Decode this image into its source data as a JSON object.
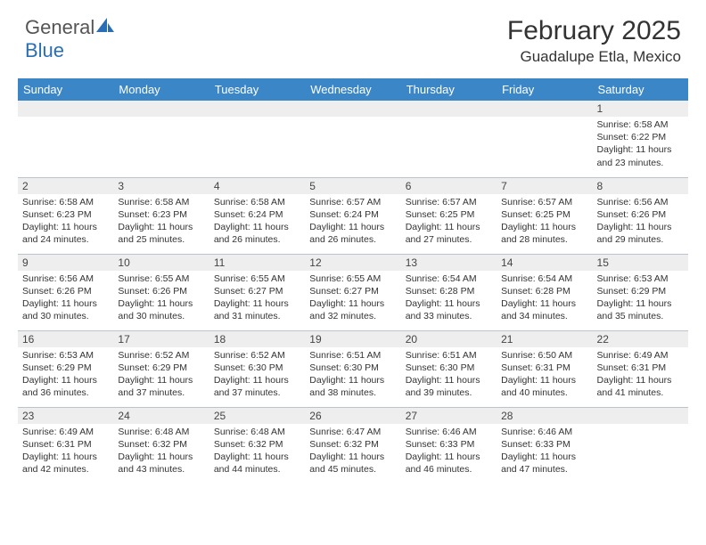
{
  "logo": {
    "text1": "General",
    "text2": "Blue"
  },
  "title": "February 2025",
  "location": "Guadalupe Etla, Mexico",
  "colors": {
    "header_bg": "#3b86c6",
    "header_text": "#ffffff",
    "daynum_bg": "#eeeeee",
    "border": "#b8c5d0",
    "logo_blue": "#2a6fb5"
  },
  "day_headers": [
    "Sunday",
    "Monday",
    "Tuesday",
    "Wednesday",
    "Thursday",
    "Friday",
    "Saturday"
  ],
  "weeks": [
    [
      {
        "n": "",
        "sunrise": "",
        "sunset": "",
        "daylight": ""
      },
      {
        "n": "",
        "sunrise": "",
        "sunset": "",
        "daylight": ""
      },
      {
        "n": "",
        "sunrise": "",
        "sunset": "",
        "daylight": ""
      },
      {
        "n": "",
        "sunrise": "",
        "sunset": "",
        "daylight": ""
      },
      {
        "n": "",
        "sunrise": "",
        "sunset": "",
        "daylight": ""
      },
      {
        "n": "",
        "sunrise": "",
        "sunset": "",
        "daylight": ""
      },
      {
        "n": "1",
        "sunrise": "Sunrise: 6:58 AM",
        "sunset": "Sunset: 6:22 PM",
        "daylight": "Daylight: 11 hours and 23 minutes."
      }
    ],
    [
      {
        "n": "2",
        "sunrise": "Sunrise: 6:58 AM",
        "sunset": "Sunset: 6:23 PM",
        "daylight": "Daylight: 11 hours and 24 minutes."
      },
      {
        "n": "3",
        "sunrise": "Sunrise: 6:58 AM",
        "sunset": "Sunset: 6:23 PM",
        "daylight": "Daylight: 11 hours and 25 minutes."
      },
      {
        "n": "4",
        "sunrise": "Sunrise: 6:58 AM",
        "sunset": "Sunset: 6:24 PM",
        "daylight": "Daylight: 11 hours and 26 minutes."
      },
      {
        "n": "5",
        "sunrise": "Sunrise: 6:57 AM",
        "sunset": "Sunset: 6:24 PM",
        "daylight": "Daylight: 11 hours and 26 minutes."
      },
      {
        "n": "6",
        "sunrise": "Sunrise: 6:57 AM",
        "sunset": "Sunset: 6:25 PM",
        "daylight": "Daylight: 11 hours and 27 minutes."
      },
      {
        "n": "7",
        "sunrise": "Sunrise: 6:57 AM",
        "sunset": "Sunset: 6:25 PM",
        "daylight": "Daylight: 11 hours and 28 minutes."
      },
      {
        "n": "8",
        "sunrise": "Sunrise: 6:56 AM",
        "sunset": "Sunset: 6:26 PM",
        "daylight": "Daylight: 11 hours and 29 minutes."
      }
    ],
    [
      {
        "n": "9",
        "sunrise": "Sunrise: 6:56 AM",
        "sunset": "Sunset: 6:26 PM",
        "daylight": "Daylight: 11 hours and 30 minutes."
      },
      {
        "n": "10",
        "sunrise": "Sunrise: 6:55 AM",
        "sunset": "Sunset: 6:26 PM",
        "daylight": "Daylight: 11 hours and 30 minutes."
      },
      {
        "n": "11",
        "sunrise": "Sunrise: 6:55 AM",
        "sunset": "Sunset: 6:27 PM",
        "daylight": "Daylight: 11 hours and 31 minutes."
      },
      {
        "n": "12",
        "sunrise": "Sunrise: 6:55 AM",
        "sunset": "Sunset: 6:27 PM",
        "daylight": "Daylight: 11 hours and 32 minutes."
      },
      {
        "n": "13",
        "sunrise": "Sunrise: 6:54 AM",
        "sunset": "Sunset: 6:28 PM",
        "daylight": "Daylight: 11 hours and 33 minutes."
      },
      {
        "n": "14",
        "sunrise": "Sunrise: 6:54 AM",
        "sunset": "Sunset: 6:28 PM",
        "daylight": "Daylight: 11 hours and 34 minutes."
      },
      {
        "n": "15",
        "sunrise": "Sunrise: 6:53 AM",
        "sunset": "Sunset: 6:29 PM",
        "daylight": "Daylight: 11 hours and 35 minutes."
      }
    ],
    [
      {
        "n": "16",
        "sunrise": "Sunrise: 6:53 AM",
        "sunset": "Sunset: 6:29 PM",
        "daylight": "Daylight: 11 hours and 36 minutes."
      },
      {
        "n": "17",
        "sunrise": "Sunrise: 6:52 AM",
        "sunset": "Sunset: 6:29 PM",
        "daylight": "Daylight: 11 hours and 37 minutes."
      },
      {
        "n": "18",
        "sunrise": "Sunrise: 6:52 AM",
        "sunset": "Sunset: 6:30 PM",
        "daylight": "Daylight: 11 hours and 37 minutes."
      },
      {
        "n": "19",
        "sunrise": "Sunrise: 6:51 AM",
        "sunset": "Sunset: 6:30 PM",
        "daylight": "Daylight: 11 hours and 38 minutes."
      },
      {
        "n": "20",
        "sunrise": "Sunrise: 6:51 AM",
        "sunset": "Sunset: 6:30 PM",
        "daylight": "Daylight: 11 hours and 39 minutes."
      },
      {
        "n": "21",
        "sunrise": "Sunrise: 6:50 AM",
        "sunset": "Sunset: 6:31 PM",
        "daylight": "Daylight: 11 hours and 40 minutes."
      },
      {
        "n": "22",
        "sunrise": "Sunrise: 6:49 AM",
        "sunset": "Sunset: 6:31 PM",
        "daylight": "Daylight: 11 hours and 41 minutes."
      }
    ],
    [
      {
        "n": "23",
        "sunrise": "Sunrise: 6:49 AM",
        "sunset": "Sunset: 6:31 PM",
        "daylight": "Daylight: 11 hours and 42 minutes."
      },
      {
        "n": "24",
        "sunrise": "Sunrise: 6:48 AM",
        "sunset": "Sunset: 6:32 PM",
        "daylight": "Daylight: 11 hours and 43 minutes."
      },
      {
        "n": "25",
        "sunrise": "Sunrise: 6:48 AM",
        "sunset": "Sunset: 6:32 PM",
        "daylight": "Daylight: 11 hours and 44 minutes."
      },
      {
        "n": "26",
        "sunrise": "Sunrise: 6:47 AM",
        "sunset": "Sunset: 6:32 PM",
        "daylight": "Daylight: 11 hours and 45 minutes."
      },
      {
        "n": "27",
        "sunrise": "Sunrise: 6:46 AM",
        "sunset": "Sunset: 6:33 PM",
        "daylight": "Daylight: 11 hours and 46 minutes."
      },
      {
        "n": "28",
        "sunrise": "Sunrise: 6:46 AM",
        "sunset": "Sunset: 6:33 PM",
        "daylight": "Daylight: 11 hours and 47 minutes."
      },
      {
        "n": "",
        "sunrise": "",
        "sunset": "",
        "daylight": ""
      }
    ]
  ]
}
